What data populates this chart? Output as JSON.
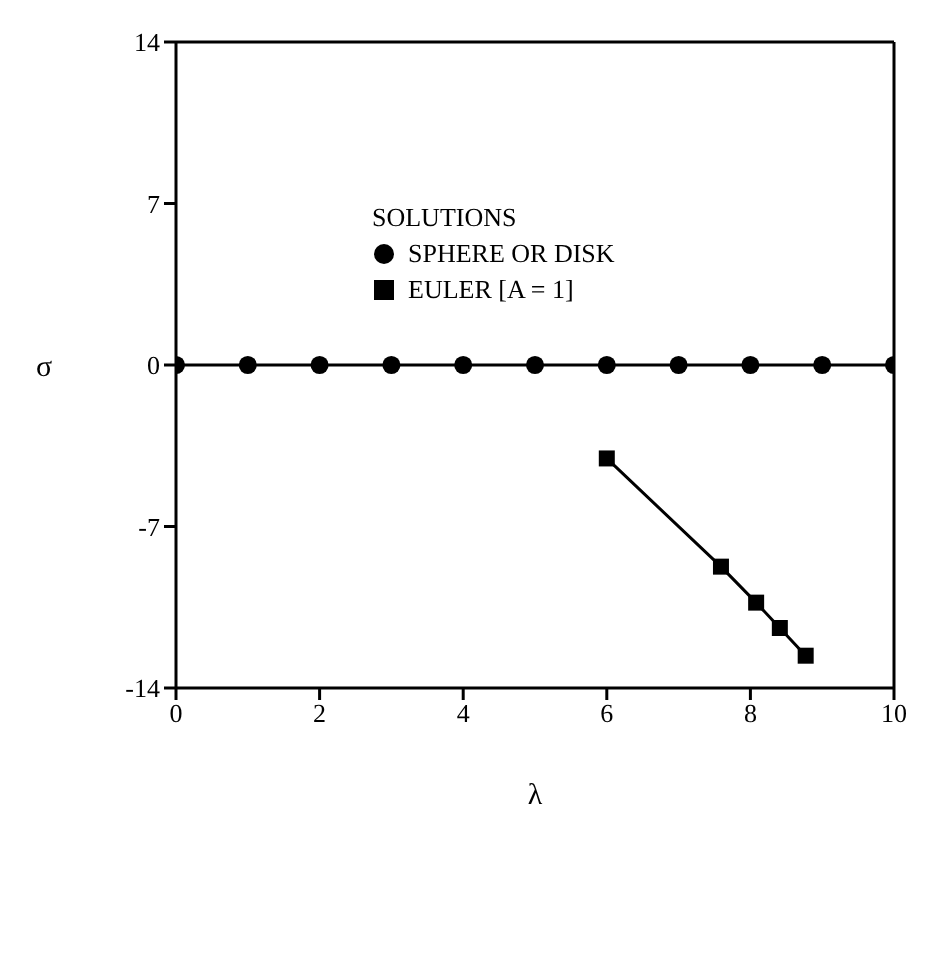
{
  "chart_data": {
    "type": "line",
    "xlabel": "λ",
    "ylabel": "σ",
    "legend_title": "SOLUTIONS",
    "legend": "top",
    "xlim": [
      0,
      10
    ],
    "xticks": [
      0,
      2,
      4,
      6,
      8,
      10
    ],
    "ylim": [
      -14,
      14
    ],
    "yticks": [
      -14,
      -7,
      0,
      7,
      14
    ],
    "grid": false,
    "series": [
      {
        "name": "SPHERE OR DISK",
        "color": "#000000",
        "marker": "circle",
        "x": [
          0,
          1,
          2,
          3,
          4,
          5,
          6,
          7,
          8,
          9,
          10
        ],
        "values": [
          0,
          0,
          0,
          0,
          0,
          0,
          0,
          0,
          0,
          0,
          0
        ]
      },
      {
        "name": "EULER [A = 1]",
        "color": "#000000",
        "marker": "square",
        "x": [
          6.0,
          7.59,
          8.08,
          8.41,
          8.77
        ],
        "values": [
          -4.05,
          -8.74,
          -10.3,
          -11.4,
          -12.6
        ]
      }
    ]
  }
}
